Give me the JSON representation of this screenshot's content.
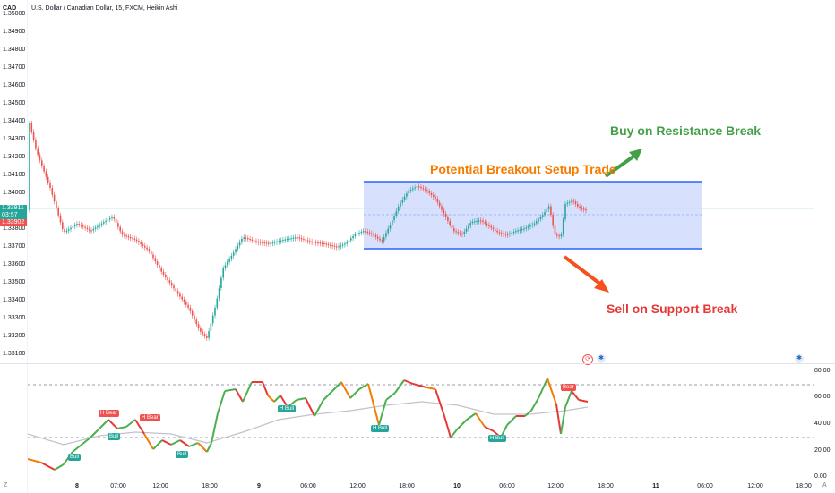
{
  "header": {
    "currency": "CAD",
    "title": "U.S. Dollar / Canadian Dollar, 15, FXCM, Heikin Ashi"
  },
  "price_axis": {
    "labels": [
      "1.35000",
      "1.34900",
      "1.34800",
      "1.34700",
      "1.34600",
      "1.34500",
      "1.34400",
      "1.34300",
      "1.34200",
      "1.34100",
      "1.34000",
      "1.33800",
      "1.33700",
      "1.33600",
      "1.33500",
      "1.33400",
      "1.33300",
      "1.33200",
      "1.33100"
    ]
  },
  "price_tags": {
    "current": "1.33911",
    "countdown": "03:57",
    "low_tag": "1.33902"
  },
  "annotations": {
    "buy": "Buy on Resistance Break",
    "setup": "Potential Breakout Setup Trade",
    "sell": "Sell on Support Break"
  },
  "oscillator_axis": {
    "labels": [
      "80.00",
      "60.00",
      "40.00",
      "20.00",
      "0.00"
    ]
  },
  "signals": {
    "h_bear_1": "H Bear",
    "h_bear_2": "H Bear",
    "bull_1": "Bull",
    "bull_2": "Bull",
    "bull_3": "Bull",
    "h_bull_1": "H Bull",
    "h_bull_2": "H Bull",
    "h_bull_3": "H Bull",
    "bear": "Bear"
  },
  "time_axis": {
    "labels": [
      "8",
      "07:00",
      "12:00",
      "18:00",
      "9",
      "06:00",
      "12:00",
      "18:00",
      "10",
      "06:00",
      "12:00",
      "18:00",
      "11",
      "06:00",
      "12:00",
      "18:00"
    ]
  },
  "corner_labels": {
    "left": "Z",
    "right": "A"
  },
  "colors": {
    "bull": "#26a69a",
    "bear": "#ef5350",
    "box_fill": "#c9d6fb",
    "box_line": "#2962ff",
    "buy_green": "#43a047",
    "setup_orange": "#f57c00",
    "sell_red": "#e53935",
    "current_price": "#26a69a",
    "low_price": "#ef5350"
  }
}
